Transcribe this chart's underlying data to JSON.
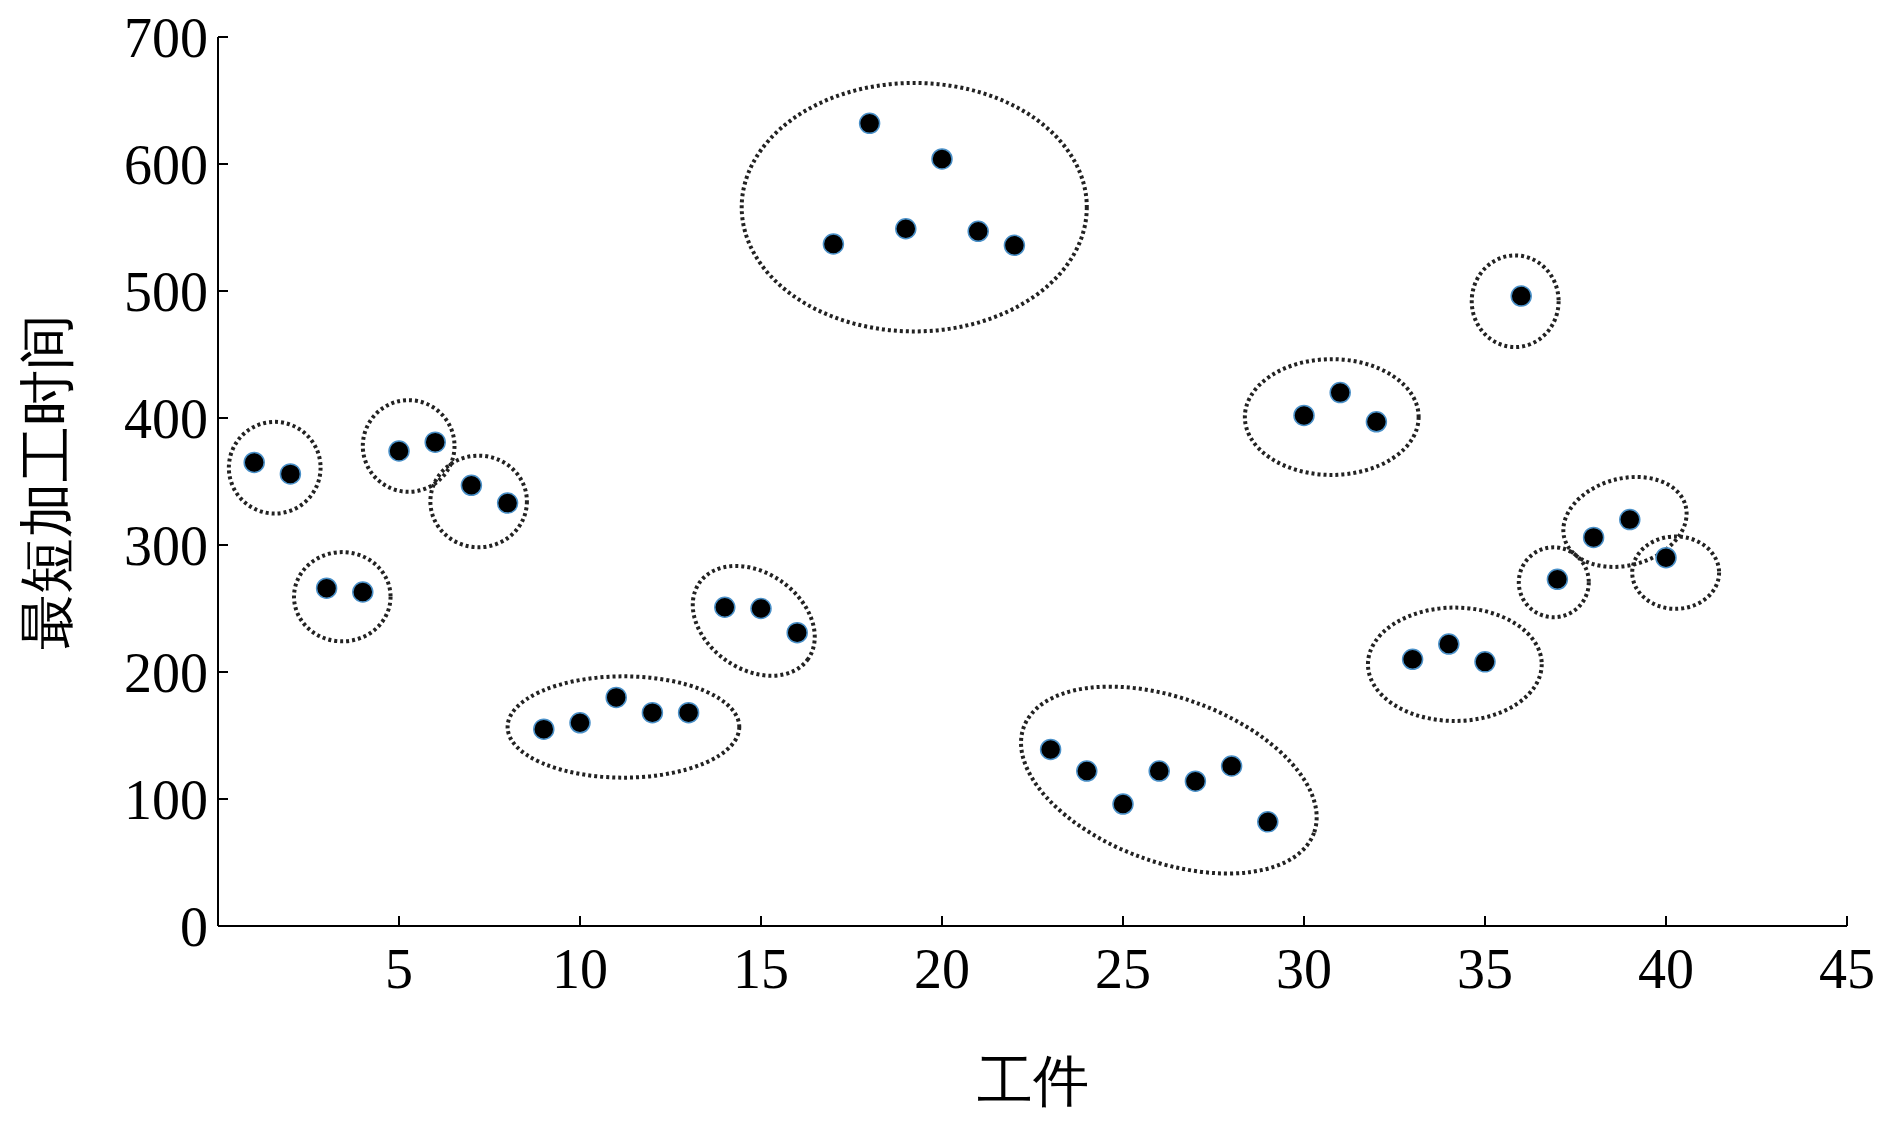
{
  "chart_data": {
    "type": "scatter",
    "xlabel": "工件",
    "ylabel": "最短加工时间",
    "x": [
      1,
      2,
      3,
      4,
      5,
      6,
      7,
      8,
      9,
      10,
      11,
      12,
      13,
      14,
      15,
      16,
      17,
      18,
      19,
      20,
      21,
      22,
      23,
      24,
      25,
      26,
      27,
      28,
      29,
      30,
      31,
      32,
      33,
      34,
      35,
      36,
      37,
      38,
      39,
      40
    ],
    "series": [
      {
        "color": "#000000",
        "values": [
          365,
          356,
          266,
          263,
          374,
          381,
          347,
          333,
          155,
          160,
          180,
          168,
          168,
          251,
          250,
          231,
          537,
          632,
          549,
          604,
          547,
          536,
          139,
          122,
          96,
          122,
          114,
          126,
          82,
          402,
          420,
          397,
          210,
          222,
          208,
          496,
          273,
          306,
          320,
          290
        ]
      }
    ],
    "xlim": [
      0,
      45
    ],
    "xticks": [
      5,
      10,
      15,
      20,
      25,
      30,
      35,
      40,
      45
    ],
    "ylim": [
      0,
      700
    ],
    "yticks": [
      0,
      100,
      200,
      300,
      400,
      500,
      600,
      700
    ],
    "grid": false,
    "marker": "circle"
  }
}
